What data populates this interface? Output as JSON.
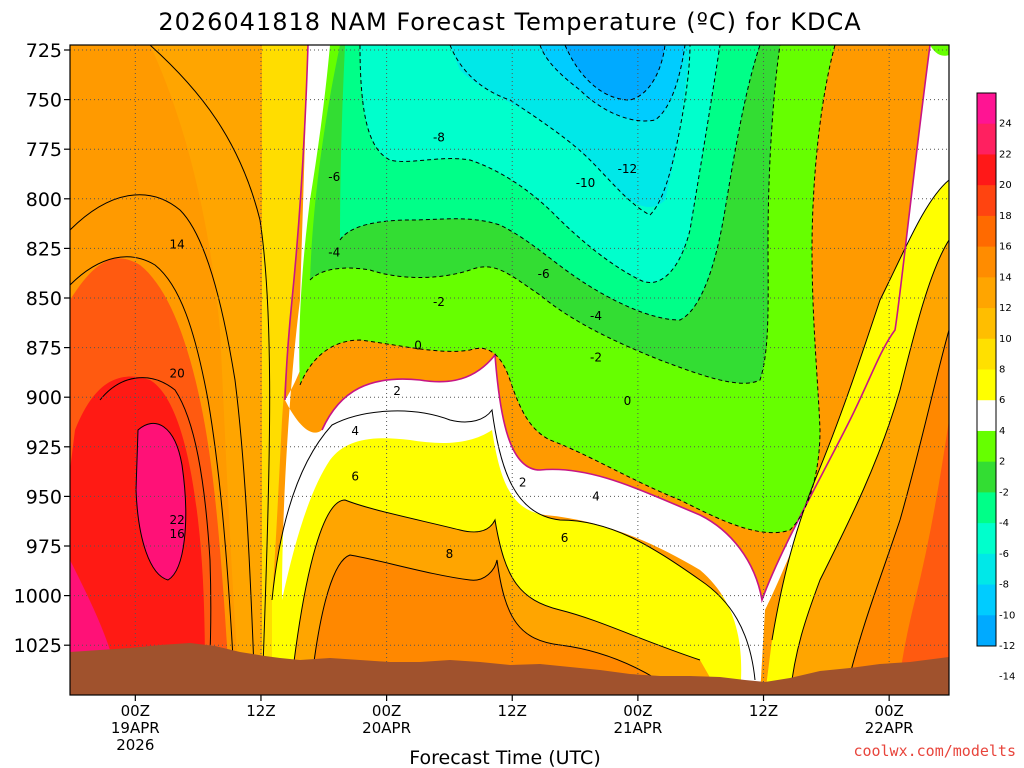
{
  "chart_data": {
    "type": "heatmap",
    "title": "2026041818 NAM Forecast Temperature (ºC) for KDCA",
    "xlabel": "Forecast Time (UTC)",
    "ylabel": "",
    "y_ticks": [
      "725",
      "750",
      "775",
      "800",
      "825",
      "850",
      "875",
      "900",
      "925",
      "950",
      "975",
      "1000",
      "1025"
    ],
    "y_values": [
      725,
      750,
      775,
      800,
      825,
      850,
      875,
      900,
      925,
      950,
      975,
      1000,
      1025
    ],
    "ylim": [
      1025,
      725
    ],
    "x_ticks": [
      {
        "hour": 6,
        "lines": [
          "00Z",
          "19APR",
          "2026"
        ]
      },
      {
        "hour": 18,
        "lines": [
          "12Z"
        ]
      },
      {
        "hour": 30,
        "lines": [
          "00Z",
          "20APR"
        ]
      },
      {
        "hour": 42,
        "lines": [
          "12Z"
        ]
      },
      {
        "hour": 54,
        "lines": [
          "00Z",
          "21APR"
        ]
      },
      {
        "hour": 66,
        "lines": [
          "12Z"
        ]
      },
      {
        "hour": 78,
        "lines": [
          "00Z",
          "22APR"
        ]
      }
    ],
    "xlim_hours": [
      0,
      84
    ],
    "x_reference": "hours after 2026041818",
    "grid": true,
    "colorbar": {
      "labels": [
        "24",
        "22",
        "20",
        "18",
        "16",
        "14",
        "12",
        "10",
        "8",
        "6",
        "4",
        "2",
        "-2",
        "-4",
        "-6",
        "-8",
        "-10",
        "-12",
        "-14"
      ],
      "colors": [
        "#ff1493",
        "#ff2060",
        "#ff1818",
        "#ff4410",
        "#ff6a00",
        "#ff8c00",
        "#ffa500",
        "#ffbe00",
        "#ffe000",
        "#ffff00",
        "#ffffff",
        "#66ff00",
        "#33dd33",
        "#00ff88",
        "#00ffcc",
        "#00e8e8",
        "#00ccff",
        "#00aaff"
      ]
    },
    "contour_labels": [
      {
        "text": "14",
        "hour": 10,
        "p": 823
      },
      {
        "text": "20",
        "hour": 10,
        "p": 888
      },
      {
        "text": "22",
        "hour": 10,
        "p": 962
      },
      {
        "text": "16",
        "hour": 10,
        "p": 969
      },
      {
        "text": "4",
        "hour": 27,
        "p": 917
      },
      {
        "text": "6",
        "hour": 27,
        "p": 940
      },
      {
        "text": "2",
        "hour": 31,
        "p": 897
      },
      {
        "text": "0",
        "hour": 33,
        "p": 874
      },
      {
        "text": "-2",
        "hour": 35,
        "p": 852
      },
      {
        "text": "-4",
        "hour": 25,
        "p": 827
      },
      {
        "text": "-6",
        "hour": 25,
        "p": 789
      },
      {
        "text": "-8",
        "hour": 35,
        "p": 769
      },
      {
        "text": "8",
        "hour": 36,
        "p": 979
      },
      {
        "text": "2",
        "hour": 43,
        "p": 943
      },
      {
        "text": "6",
        "hour": 47,
        "p": 971
      },
      {
        "text": "4",
        "hour": 50,
        "p": 950
      },
      {
        "text": "-6",
        "hour": 45,
        "p": 838
      },
      {
        "text": "-4",
        "hour": 50,
        "p": 859
      },
      {
        "text": "-2",
        "hour": 50,
        "p": 880
      },
      {
        "text": "0",
        "hour": 53,
        "p": 902
      },
      {
        "text": "-10",
        "hour": 49,
        "p": 792
      },
      {
        "text": "-12",
        "hour": 53,
        "p": 785
      }
    ],
    "colors": {
      "ground": "#a0522d",
      "zero_line": "#c71585"
    }
  },
  "credit": "coolwx.com/modelts"
}
